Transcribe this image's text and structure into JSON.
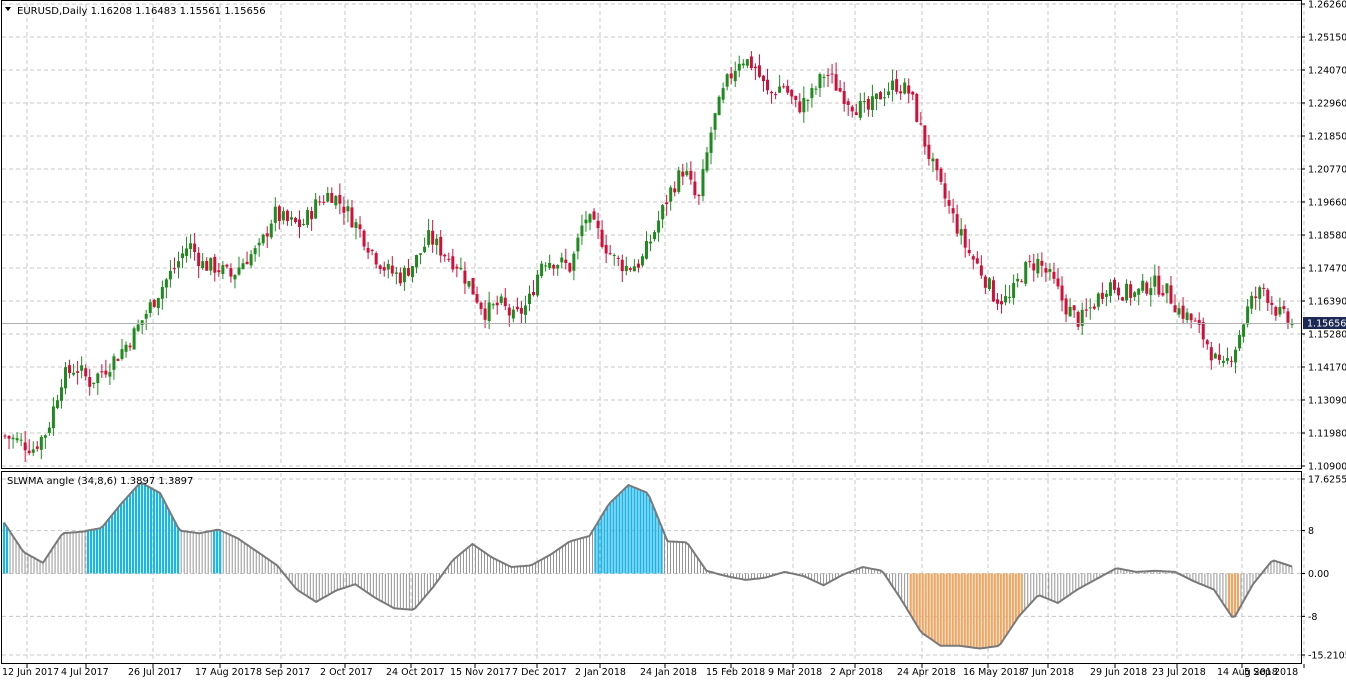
{
  "header": {
    "symbol_text": "EURUSD,Daily  1.16208 1.16483 1.15561 1.15656",
    "menu_icon": "triangle-down-icon"
  },
  "indicator": {
    "label": "SLWMA angle (34,8,6) 1.3897 1.3897"
  },
  "price_badge": "1.15656",
  "colors": {
    "bull": "#1f8b1f",
    "bear": "#d0103a",
    "grid": "#c8c8c8",
    "hist_up": "#1ab4e8",
    "hist_down": "#f2a460",
    "hist_neutral": "#7a7a7a",
    "badge_bg": "#1c2a55"
  },
  "chart_data": [
    {
      "type": "candlestick",
      "title": "EURUSD,Daily",
      "ohlc_last": {
        "open": 1.16208,
        "high": 1.16483,
        "low": 1.15561,
        "close": 1.15656
      },
      "ylim": [
        1.109,
        1.2626
      ],
      "y_ticks": [
        "1.26260",
        "1.25150",
        "1.24070",
        "1.22960",
        "1.21850",
        "1.20770",
        "1.19660",
        "1.18580",
        "1.17470",
        "1.16390",
        "1.15280",
        "1.14170",
        "1.13090",
        "1.11980",
        "1.10900"
      ],
      "x_ticks": [
        "12 Jun 2017",
        "4 Jul 2017",
        "26 Jul 2017",
        "17 Aug 2017",
        "8 Sep 2017",
        "2 Oct 2017",
        "24 Oct 2017",
        "15 Nov 2017",
        "7 Dec 2017",
        "2 Jan 2018",
        "24 Jan 2018",
        "15 Feb 2018",
        "9 Mar 2018",
        "2 Apr 2018",
        "24 Apr 2018",
        "16 May 2018",
        "7 Jun 2018",
        "29 Jun 2018",
        "23 Jul 2018",
        "14 Aug 2018",
        "5 Sep 2018"
      ],
      "close_path": [
        1.119,
        1.117,
        1.115,
        1.121,
        1.138,
        1.142,
        1.137,
        1.141,
        1.146,
        1.152,
        1.16,
        1.168,
        1.175,
        1.183,
        1.176,
        1.175,
        1.172,
        1.178,
        1.181,
        1.193,
        1.19,
        1.189,
        1.196,
        1.2,
        1.195,
        1.188,
        1.18,
        1.174,
        1.172,
        1.177,
        1.185,
        1.18,
        1.176,
        1.168,
        1.16,
        1.163,
        1.158,
        1.163,
        1.178,
        1.177,
        1.175,
        1.192,
        1.186,
        1.178,
        1.175,
        1.177,
        1.188,
        1.2,
        1.208,
        1.196,
        1.222,
        1.236,
        1.245,
        1.242,
        1.232,
        1.236,
        1.228,
        1.232,
        1.24,
        1.234,
        1.229,
        1.227,
        1.233,
        1.236,
        1.233,
        1.217,
        1.203,
        1.192,
        1.181,
        1.174,
        1.165,
        1.164,
        1.174,
        1.177,
        1.171,
        1.162,
        1.157,
        1.163,
        1.17,
        1.167,
        1.166,
        1.17,
        1.168,
        1.161,
        1.157,
        1.15,
        1.14,
        1.149,
        1.163,
        1.168,
        1.16,
        1.156
      ],
      "close_path_unit": "approximate close per ~3 trading days, Jun 2017 to Sep 2018"
    },
    {
      "type": "histogram",
      "title": "SLWMA angle (34,8,6)",
      "ylim": [
        -15.2105,
        17.6255
      ],
      "y_ticks": [
        "17.6255",
        "8",
        "0.00",
        "-8",
        "-15.2105"
      ],
      "values_path": [
        9.5,
        4.0,
        2.0,
        7.5,
        7.8,
        8.5,
        13.0,
        17.0,
        15.0,
        8.0,
        7.5,
        8.2,
        6.5,
        4.0,
        1.5,
        -3.0,
        -5.3,
        -3.2,
        -2.0,
        -4.5,
        -6.5,
        -6.8,
        -2.5,
        2.5,
        5.5,
        3.0,
        1.2,
        1.5,
        3.5,
        6.0,
        7.0,
        13.0,
        16.5,
        15.0,
        6.0,
        5.8,
        0.5,
        -0.5,
        -1.2,
        -0.8,
        0.3,
        -0.5,
        -2.2,
        -0.2,
        1.2,
        0.5,
        -5.0,
        -11.0,
        -13.5,
        -13.5,
        -14.0,
        -13.5,
        -8.0,
        -4.0,
        -5.5,
        -3.0,
        -1.0,
        1.0,
        0.3,
        0.5,
        0.3,
        -1.5,
        -3.0,
        -8.5,
        -2.0,
        2.5,
        1.3
      ],
      "color_rule": "blue above ~8, orange below ~-7, grey otherwise"
    }
  ]
}
